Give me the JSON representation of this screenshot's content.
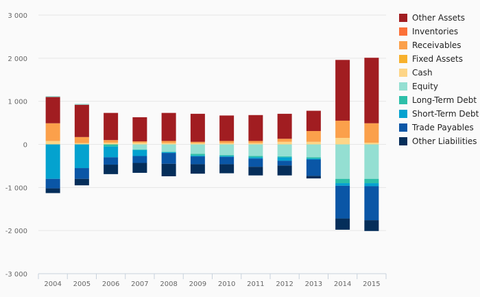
{
  "chart_data": {
    "type": "bar",
    "stacked": true,
    "categories": [
      "2004",
      "2005",
      "2006",
      "2007",
      "2008",
      "2009",
      "2010",
      "2011",
      "2012",
      "2013",
      "2014",
      "2015"
    ],
    "ylim": [
      -3000,
      3000
    ],
    "yticks": [
      3000,
      2000,
      1000,
      0,
      -1000,
      -2000,
      -3000
    ],
    "ytick_labels": [
      "3 000",
      "2 000",
      "1 000",
      "0",
      "-1 000",
      "-2 000",
      "-3 000"
    ],
    "grid": true,
    "legend_position": "right",
    "positive_series": [
      {
        "name": "Cash",
        "color": "#fdd587",
        "values": [
          80,
          30,
          40,
          40,
          30,
          30,
          30,
          30,
          60,
          60,
          150,
          40
        ]
      },
      {
        "name": "Fixed Assets",
        "color": "#f7b12d",
        "values": [
          0,
          0,
          0,
          0,
          0,
          0,
          0,
          0,
          0,
          0,
          0,
          0
        ]
      },
      {
        "name": "Receivables",
        "color": "#fba04b",
        "values": [
          410,
          140,
          60,
          30,
          50,
          30,
          50,
          50,
          70,
          250,
          400,
          450
        ]
      },
      {
        "name": "Inventories",
        "color": "#fc7138",
        "values": [
          0,
          0,
          0,
          0,
          0,
          0,
          0,
          0,
          0,
          0,
          0,
          0
        ]
      },
      {
        "name": "Other Assets",
        "color": "#a11d21",
        "values": [
          610,
          750,
          630,
          560,
          650,
          650,
          590,
          600,
          580,
          470,
          1410,
          1520
        ]
      }
    ],
    "negative_series": [
      {
        "name": "Equity",
        "color": "#94dfd2",
        "values": [
          0,
          0,
          0,
          120,
          170,
          220,
          250,
          270,
          280,
          300,
          800,
          800
        ]
      },
      {
        "name": "Long-Term Debt",
        "color": "#2cbfa9",
        "values": [
          0,
          0,
          50,
          10,
          10,
          40,
          20,
          30,
          20,
          30,
          100,
          100
        ]
      },
      {
        "name": "Short-Term Debt",
        "color": "#04a2cf",
        "values": [
          800,
          550,
          250,
          140,
          20,
          20,
          20,
          30,
          80,
          20,
          60,
          70
        ]
      },
      {
        "name": "Trade Payables",
        "color": "#0a56a6",
        "values": [
          220,
          250,
          170,
          160,
          250,
          180,
          170,
          190,
          110,
          380,
          760,
          790
        ]
      },
      {
        "name": "Other Liabilities",
        "color": "#052e5a",
        "values": [
          110,
          150,
          220,
          230,
          290,
          220,
          210,
          200,
          230,
          60,
          260,
          250
        ]
      }
    ],
    "tops": [
      {
        "name": "Equity",
        "color": "#94dfd2",
        "values": [
          20,
          20,
          0,
          0,
          0,
          0,
          0,
          0,
          0,
          0,
          0,
          0
        ]
      }
    ]
  },
  "legend": [
    {
      "label": "Other Assets",
      "color": "#a11d21"
    },
    {
      "label": "Inventories",
      "color": "#fc7138"
    },
    {
      "label": "Receivables",
      "color": "#fba04b"
    },
    {
      "label": "Fixed Assets",
      "color": "#f7b12d"
    },
    {
      "label": "Cash",
      "color": "#fdd587"
    },
    {
      "label": "Equity",
      "color": "#94dfd2"
    },
    {
      "label": "Long-Term Debt",
      "color": "#2cbfa9"
    },
    {
      "label": "Short-Term Debt",
      "color": "#04a2cf"
    },
    {
      "label": "Trade Payables",
      "color": "#0a56a6"
    },
    {
      "label": "Other Liabilities",
      "color": "#052e5a"
    }
  ]
}
